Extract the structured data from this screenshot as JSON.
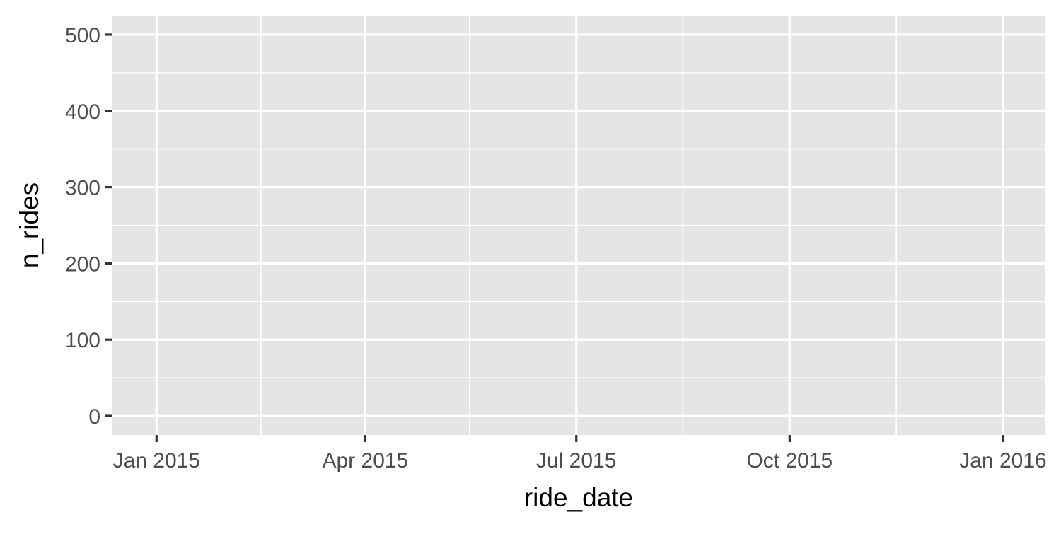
{
  "chart_data": {
    "type": "line",
    "title": "",
    "xlabel": "ride_date",
    "ylabel": "n_rides",
    "x_scale": "date",
    "xlim": [
      "2014-12-13",
      "2016-01-19"
    ],
    "ylim": [
      -25,
      525
    ],
    "x_ticks": [
      {
        "value": "2015-01-01",
        "label": "Jan 2015"
      },
      {
        "value": "2015-04-01",
        "label": "Apr 2015"
      },
      {
        "value": "2015-07-01",
        "label": "Jul 2015"
      },
      {
        "value": "2015-10-01",
        "label": "Oct 2015"
      },
      {
        "value": "2016-01-01",
        "label": "Jan 2016"
      }
    ],
    "x_minor_ticks": [
      "2015-02-15",
      "2015-05-16",
      "2015-08-16",
      "2015-11-16"
    ],
    "y_ticks": [
      {
        "value": 0,
        "label": "0"
      },
      {
        "value": 100,
        "label": "100"
      },
      {
        "value": 200,
        "label": "200"
      },
      {
        "value": 300,
        "label": "300"
      },
      {
        "value": 400,
        "label": "400"
      },
      {
        "value": 500,
        "label": "500"
      }
    ],
    "y_minor_ticks": [
      50,
      150,
      250,
      350,
      450
    ],
    "series": [],
    "grid": true,
    "legend": "none",
    "colors": {
      "panel_background": "#e5e5e5",
      "grid_line": "#ffffff",
      "tick_mark": "#333333",
      "tick_label": "#4d4d4d",
      "axis_title": "#000000"
    }
  }
}
